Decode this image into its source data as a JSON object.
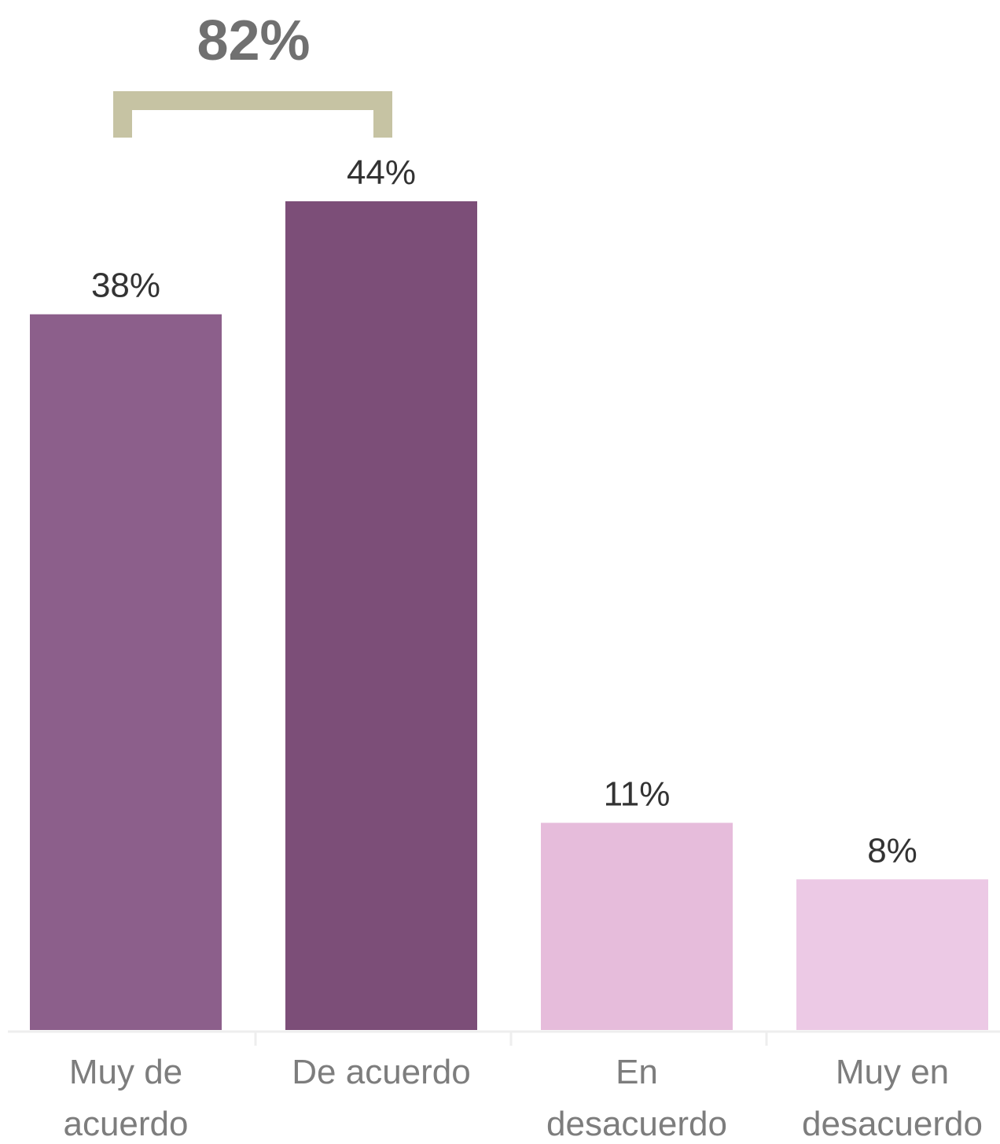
{
  "chart_data": {
    "type": "bar",
    "categories": [
      [
        "Muy de",
        "acuerdo"
      ],
      [
        "De acuerdo"
      ],
      [
        "En",
        "desacuerdo"
      ],
      [
        "Muy en",
        "desacuerdo"
      ]
    ],
    "values": [
      38,
      44,
      11,
      8
    ],
    "value_labels": [
      "38%",
      "44%",
      "11%",
      "8%"
    ],
    "bar_colors": [
      "#8c5f8b",
      "#7c4e78",
      "#e6bcdb",
      "#ecc9e5"
    ],
    "ylim": [
      0,
      44
    ],
    "grid": false,
    "title": "",
    "xlabel": "",
    "ylabel": "",
    "annotation": {
      "text": "82%",
      "spans": [
        0,
        1
      ],
      "color": "#c6c3a3"
    },
    "axis_color": "#eeeeee"
  }
}
